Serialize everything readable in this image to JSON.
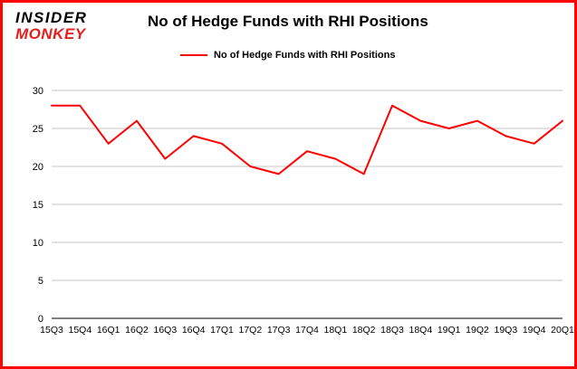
{
  "brand": {
    "line1": "INSIDER",
    "line2": "MONKEY"
  },
  "header": {
    "title": "No of Hedge Funds with RHI Positions"
  },
  "legend": {
    "label": "No of Hedge Funds with RHI Positions"
  },
  "colors": {
    "line": "#fe0101",
    "border": "#fe0101",
    "grid": "#c6c6c6",
    "axis": "#000000",
    "logo_red": "#e2201c",
    "text": "#000000"
  },
  "chart_data": {
    "type": "line",
    "title": "No of Hedge Funds with RHI Positions",
    "categories": [
      "15Q3",
      "15Q4",
      "16Q1",
      "16Q2",
      "16Q3",
      "16Q4",
      "17Q1",
      "17Q2",
      "17Q3",
      "17Q4",
      "18Q1",
      "18Q2",
      "18Q3",
      "18Q4",
      "19Q1",
      "19Q2",
      "19Q3",
      "19Q4",
      "20Q1"
    ],
    "values": [
      28,
      28,
      23,
      26,
      21,
      24,
      23,
      20,
      19,
      22,
      21,
      19,
      28,
      26,
      25,
      26,
      24,
      23,
      26
    ],
    "series": [
      {
        "name": "No of Hedge Funds with RHI Positions",
        "values": [
          28,
          28,
          23,
          26,
          21,
          24,
          23,
          20,
          19,
          22,
          21,
          19,
          28,
          26,
          25,
          26,
          24,
          23,
          26
        ]
      }
    ],
    "xlabel": "",
    "ylabel": "",
    "ylim": [
      0,
      30
    ],
    "yticks": [
      0,
      5,
      10,
      15,
      20,
      25,
      30
    ],
    "grid": true,
    "legend_position": "top"
  }
}
